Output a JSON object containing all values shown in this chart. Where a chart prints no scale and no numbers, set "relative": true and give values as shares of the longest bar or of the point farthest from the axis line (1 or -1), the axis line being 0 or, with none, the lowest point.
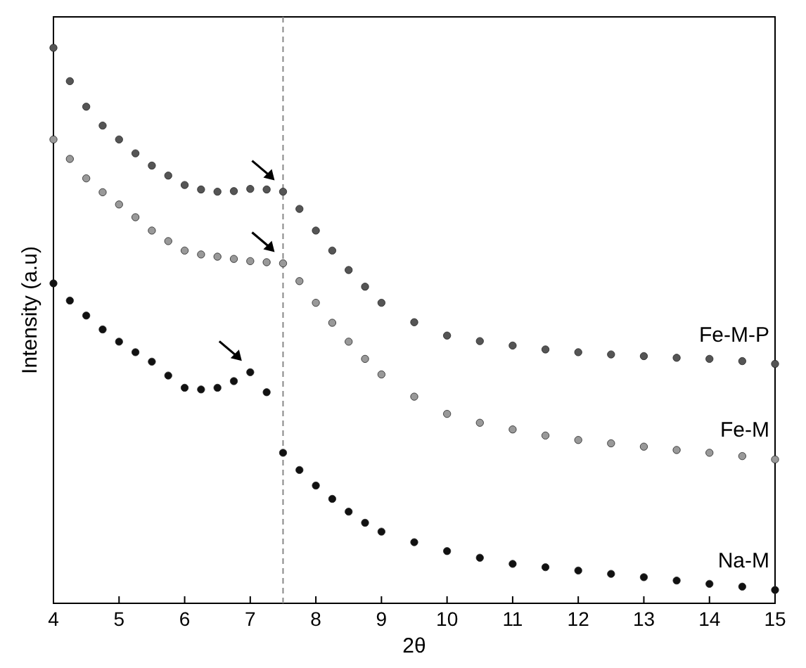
{
  "chart_data": {
    "type": "scatter",
    "relative": true,
    "xlabel": "2θ",
    "ylabel": "Intensity (a.u)",
    "xlim": [
      4,
      15
    ],
    "xticks": [
      4,
      5,
      6,
      7,
      8,
      9,
      10,
      11,
      12,
      13,
      14,
      15
    ],
    "tick_labels": "x",
    "marker": "circle",
    "grid": false,
    "ref_lines": [
      {
        "axis": "x",
        "value": 7.5,
        "color": "#888888",
        "line_style": "dashed"
      }
    ],
    "series": [
      {
        "name": "Fe-M-P",
        "color": "#555555",
        "x": [
          4,
          4.25,
          4.5,
          4.75,
          5,
          5.25,
          5.5,
          5.75,
          6,
          6.25,
          6.5,
          6.75,
          7,
          7.25,
          7.5,
          7.75,
          8,
          8.25,
          8.5,
          8.75,
          9,
          9.5,
          10,
          10.5,
          11,
          11.5,
          12,
          12.5,
          13,
          13.5,
          14,
          14.5,
          15
        ],
        "values": [
          1.0,
          0.94,
          0.894,
          0.86,
          0.835,
          0.81,
          0.788,
          0.77,
          0.753,
          0.745,
          0.741,
          0.742,
          0.746,
          0.745,
          0.741,
          0.71,
          0.671,
          0.635,
          0.6,
          0.57,
          0.541,
          0.506,
          0.482,
          0.472,
          0.464,
          0.457,
          0.452,
          0.448,
          0.445,
          0.442,
          0.44,
          0.436,
          0.431
        ]
      },
      {
        "name": "Fe-M",
        "color": "#999999",
        "x": [
          4,
          4.25,
          4.5,
          4.75,
          5,
          5.25,
          5.5,
          5.75,
          6,
          6.25,
          6.5,
          6.75,
          7,
          7.25,
          7.5,
          7.75,
          8,
          8.25,
          8.5,
          8.75,
          9,
          9.5,
          10,
          10.5,
          11,
          11.5,
          12,
          12.5,
          13,
          13.5,
          14,
          14.5,
          15
        ],
        "values": [
          0.835,
          0.8,
          0.765,
          0.74,
          0.718,
          0.695,
          0.671,
          0.652,
          0.635,
          0.628,
          0.624,
          0.62,
          0.616,
          0.614,
          0.612,
          0.58,
          0.541,
          0.505,
          0.471,
          0.44,
          0.412,
          0.372,
          0.341,
          0.325,
          0.313,
          0.302,
          0.294,
          0.288,
          0.282,
          0.276,
          0.271,
          0.265,
          0.259
        ]
      },
      {
        "name": "Na-M",
        "color": "#111111",
        "x": [
          4,
          4.25,
          4.5,
          4.75,
          5,
          5.25,
          5.5,
          5.75,
          6,
          6.25,
          6.5,
          6.75,
          7,
          7.25,
          7.5,
          7.75,
          8,
          8.25,
          8.5,
          8.75,
          9,
          9.5,
          10,
          10.5,
          11,
          11.5,
          12,
          12.5,
          13,
          13.5,
          14,
          14.5,
          15
        ],
        "values": [
          0.576,
          0.545,
          0.518,
          0.493,
          0.471,
          0.452,
          0.435,
          0.41,
          0.388,
          0.385,
          0.388,
          0.4,
          0.416,
          0.38,
          0.271,
          0.24,
          0.212,
          0.188,
          0.165,
          0.145,
          0.129,
          0.11,
          0.094,
          0.082,
          0.071,
          0.065,
          0.059,
          0.053,
          0.047,
          0.041,
          0.035,
          0.03,
          0.024
        ]
      }
    ]
  }
}
